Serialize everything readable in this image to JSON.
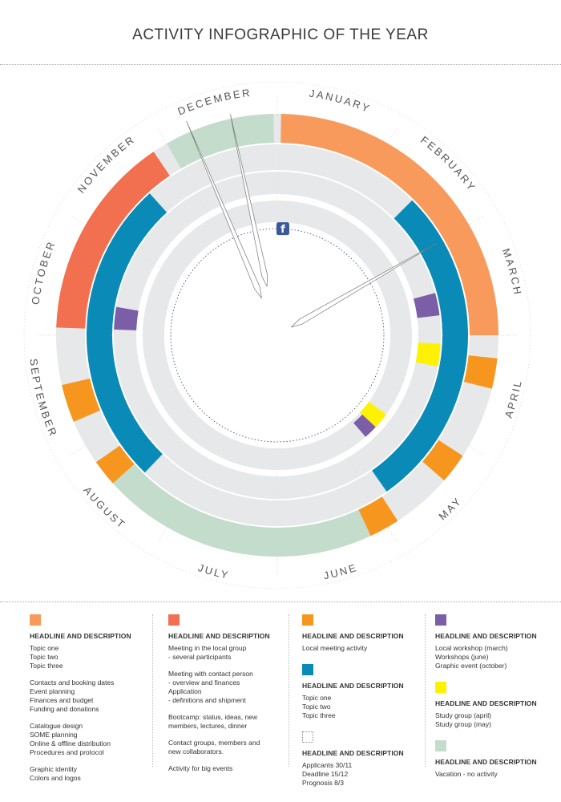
{
  "title": "ACTIVITY INFOGRAPHIC OF THE YEAR",
  "months": [
    "JANUARY",
    "FEBRUARY",
    "MARCH",
    "APRIL",
    "MAY",
    "JUNE",
    "JULY",
    "AUGUST",
    "SEPTEMBER",
    "OCTOBER",
    "NOVEMBER",
    "DECEMBER"
  ],
  "colors": {
    "orange_light": "#f89a5c",
    "orange_red": "#f2704f",
    "orange": "#f7961e",
    "blue": "#0a8bb7",
    "purple": "#7b5ea7",
    "yellow": "#fff200",
    "green": "#c3dccb",
    "track": "#e7e8e9"
  },
  "icons": {
    "facebook": "facebook-icon"
  },
  "legend": {
    "col1": {
      "heading": "HEADLINE AND DESCRIPTION",
      "groups": [
        [
          "Topic one",
          "Topic two",
          "Topic three"
        ],
        [
          "Contacts and booking dates",
          "Event planning",
          "Finances and budget",
          "Funding and donations"
        ],
        [
          "Catalogue design",
          "SOME planning",
          "Online & offline distribution",
          "Procedures and protocol"
        ],
        [
          "Graphic identity",
          "Colors and logos"
        ]
      ]
    },
    "col2": {
      "heading": "HEADLINE AND DESCRIPTION",
      "groups": [
        [
          "Meeting in the local group",
          "- several participants"
        ],
        [
          "Meeting with contact person",
          "- overview and finances",
          "Application",
          "- definitions and shipment"
        ],
        [
          "Bootcamp: status, ideas, new",
          "members, lectures, dinner"
        ],
        [
          "Contact groups, members and",
          "new collaborators."
        ],
        [
          "Activity for big events"
        ]
      ]
    },
    "col3": [
      {
        "heading": "HEADLINE AND DESCRIPTION",
        "lines": [
          "Local meeting activity"
        ]
      },
      {
        "heading": "HEADLINE AND DESCRIPTION",
        "lines": [
          "Topic one",
          "Topic two",
          "Topic three"
        ]
      },
      {
        "heading": "HEADLINE AND DESCRIPTION",
        "lines": [
          "Applicants 30/11",
          "Deadline 15/12",
          "Prognosis 8/3"
        ]
      }
    ],
    "col4": [
      {
        "heading": "HEADLINE AND DESCRIPTION",
        "lines": [
          "Local workshop (march)",
          "Workshops (june)",
          "Graphic event (october)"
        ]
      },
      {
        "heading": "HEADLINE AND DESCRIPTION",
        "lines": [
          "Study group (april)",
          "Study group (may)"
        ]
      },
      {
        "heading": "HEADLINE AND DESCRIPTION",
        "lines": [
          "Vacation - no activity"
        ]
      }
    ]
  }
}
